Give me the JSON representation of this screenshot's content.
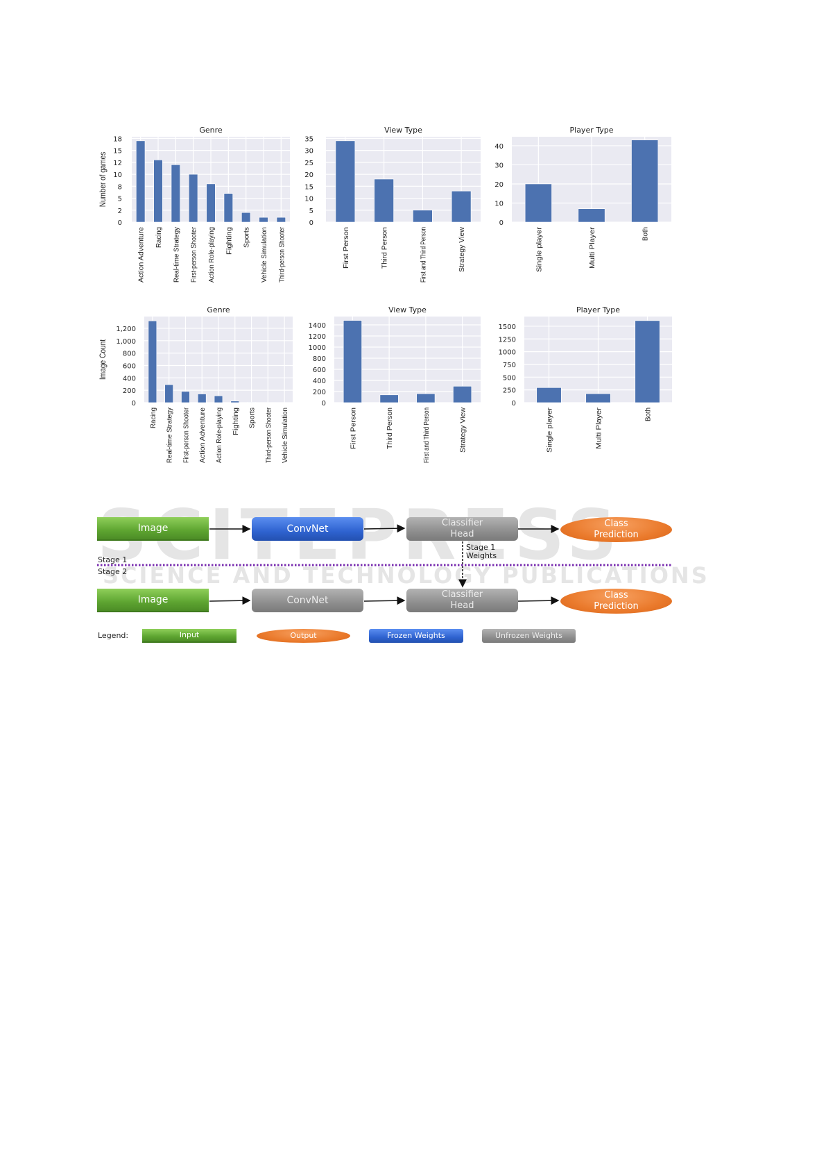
{
  "chart_data": [
    {
      "type": "bar",
      "title": "Genre",
      "ylabel": "Number of games",
      "xlabel": "",
      "categories": [
        "Action Adventure",
        "Racing",
        "Real-time Strategy",
        "First-person Shooter",
        "Action Role-playing",
        "Fighting",
        "Sports",
        "Vehicle Simulation",
        "Third-person Shooter"
      ],
      "values": [
        17,
        13,
        12,
        10,
        8,
        6,
        2,
        1,
        1
      ],
      "yticks": [
        0,
        2.5,
        5,
        7.5,
        10,
        12.5,
        15,
        17.5
      ],
      "ytick_labels": [
        "0",
        "2",
        "5",
        "8",
        "10",
        "12",
        "15",
        "18"
      ],
      "ylim": [
        0,
        17.85
      ],
      "grid": true,
      "color": "#4c72b0",
      "background": "#eaeaf2"
    },
    {
      "type": "bar",
      "title": "View Type",
      "ylabel": "",
      "xlabel": "",
      "categories": [
        "First Person",
        "Third Person",
        "First and Third Person",
        "Strategy View"
      ],
      "values": [
        34,
        18,
        5,
        13
      ],
      "yticks": [
        0,
        5,
        10,
        15,
        20,
        25,
        30,
        35
      ],
      "ytick_labels": [
        "0",
        "5",
        "10",
        "15",
        "20",
        "25",
        "30",
        "35"
      ],
      "ylim": [
        0,
        35.7
      ],
      "grid": true,
      "color": "#4c72b0",
      "background": "#eaeaf2"
    },
    {
      "type": "bar",
      "title": "Player Type",
      "ylabel": "",
      "xlabel": "",
      "categories": [
        "Single player",
        "Multi Player",
        "Both"
      ],
      "values": [
        20,
        7,
        43
      ],
      "yticks": [
        0,
        10,
        20,
        30,
        40
      ],
      "ytick_labels": [
        "0",
        "10",
        "20",
        "30",
        "40"
      ],
      "ylim": [
        0,
        44.7
      ],
      "grid": true,
      "color": "#4c72b0",
      "background": "#eaeaf2"
    },
    {
      "type": "bar",
      "title": "Genre",
      "ylabel": "Image Count",
      "xlabel": "",
      "categories": [
        "Racing",
        "Real-time Strategy",
        "First-person Shooter",
        "Action Adventure",
        "Action Role-playing",
        "Fighting",
        "Sports",
        "Third-person Shooter",
        "Vehicle Simulation"
      ],
      "values": [
        1320,
        290,
        180,
        140,
        110,
        25,
        7,
        0,
        0
      ],
      "yticks": [
        0,
        200,
        400,
        600,
        800,
        1000,
        1200
      ],
      "ytick_labels": [
        "0",
        "200",
        "400",
        "600",
        "800",
        "1,000",
        "1,200"
      ],
      "ylim": [
        0,
        1390
      ],
      "grid": true,
      "color": "#4c72b0",
      "background": "#eaeaf2"
    },
    {
      "type": "bar",
      "title": "View Type",
      "ylabel": "",
      "xlabel": "",
      "categories": [
        "First Person",
        "Third Person",
        "First and Third Person",
        "Strategy View"
      ],
      "values": [
        1480,
        140,
        160,
        295
      ],
      "yticks": [
        0,
        200,
        400,
        600,
        800,
        1000,
        1200,
        1400
      ],
      "ytick_labels": [
        "0",
        "200",
        "400",
        "600",
        "800",
        "1000",
        "1200",
        "1400"
      ],
      "ylim": [
        0,
        1550
      ],
      "grid": true,
      "color": "#4c72b0",
      "background": "#eaeaf2"
    },
    {
      "type": "bar",
      "title": "Player Type",
      "ylabel": "",
      "xlabel": "",
      "categories": [
        "Single player",
        "Multi Player",
        "Both"
      ],
      "values": [
        295,
        175,
        1610
      ],
      "yticks": [
        0,
        250,
        500,
        750,
        1000,
        1250,
        1500
      ],
      "ytick_labels": [
        "0",
        "250",
        "500",
        "750",
        "1000",
        "1250",
        "1500"
      ],
      "ylim": [
        0,
        1690
      ],
      "grid": true,
      "color": "#4c72b0",
      "background": "#eaeaf2"
    }
  ],
  "diagram": {
    "stage1": {
      "image": "Image",
      "convnet": "ConvNet",
      "head": "Classifier Head",
      "prediction": "Class Prediction"
    },
    "transfer_label": "Stage 1 Weights",
    "stage1_label": "Stage 1",
    "stage2_label": "Stage 2",
    "stage2": {
      "image": "Image",
      "convnet": "ConvNet",
      "head": "Classifier Head",
      "prediction": "Class Prediction"
    },
    "legend": {
      "title": "Legend:",
      "input": "Input",
      "output": "Output",
      "frozen": "Frozen Weights",
      "unfrozen": "Unfrozen Weights"
    },
    "colors": {
      "input": "#5ea531",
      "output": "#ea7a2c",
      "frozen": "#2f63d0",
      "unfrozen": "#8e8e8e",
      "divider": "#7a2fb0"
    }
  },
  "watermark": {
    "line1": "SCITEPRESS",
    "line2": "SCIENCE AND TECHNOLOGY PUBLICATIONS"
  }
}
